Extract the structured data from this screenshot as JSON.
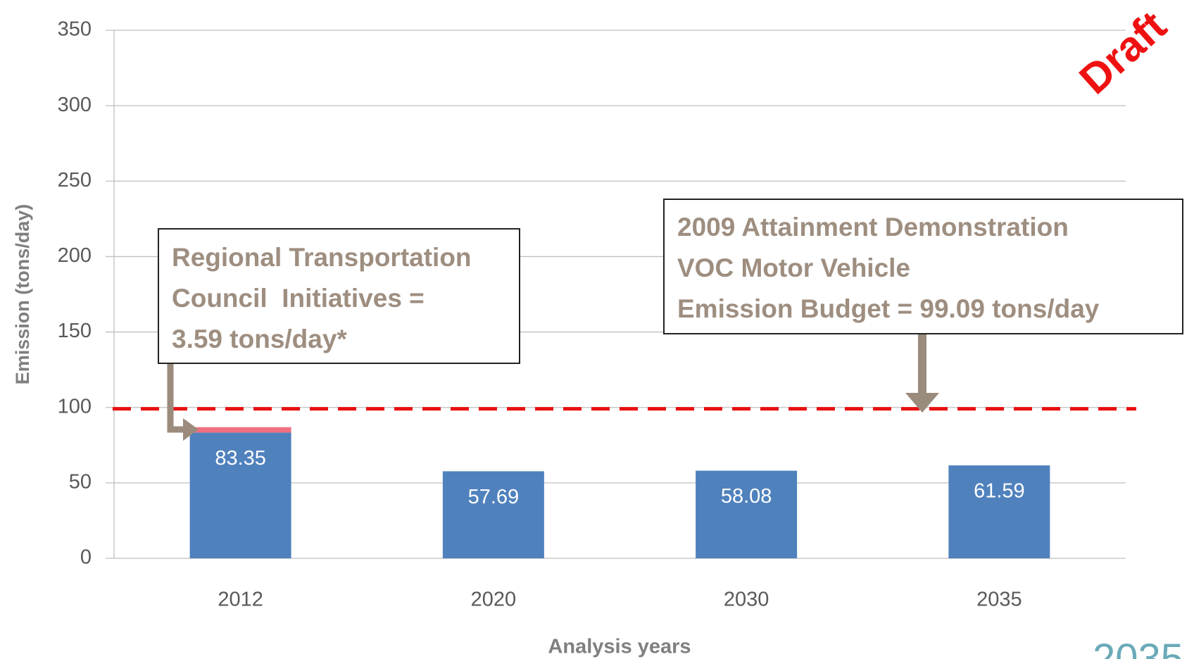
{
  "chart_data": {
    "type": "stacked_bar",
    "x_label": "Analysis years",
    "y_label": "Emission (tons/day)",
    "categories": [
      "2012",
      "2020",
      "2030",
      "2035"
    ],
    "series": [
      {
        "color": "#4f81bd",
        "values": [
          83.35,
          57.69,
          58.08,
          61.59
        ]
      },
      {
        "color": "#f07080",
        "values": [
          3.59,
          null,
          null,
          null
        ]
      }
    ],
    "ylim": [
      0,
      350
    ],
    "yticks": [
      0,
      50,
      100,
      150,
      200,
      250,
      300,
      350
    ],
    "grid": true,
    "reference_line": {
      "value": 99.09,
      "color": "#e81010"
    },
    "annotations": [
      {
        "lines": [
          "Regional Transportation",
          "Council  Initiatives =",
          "3.59 tons/day*"
        ]
      },
      {
        "lines": [
          "2009 Attainment Demonstration",
          "VOC Motor Vehicle",
          "Emission Budget = 99.09 tons/day"
        ]
      }
    ],
    "stamp": "Draft",
    "logo_text": "2035"
  }
}
